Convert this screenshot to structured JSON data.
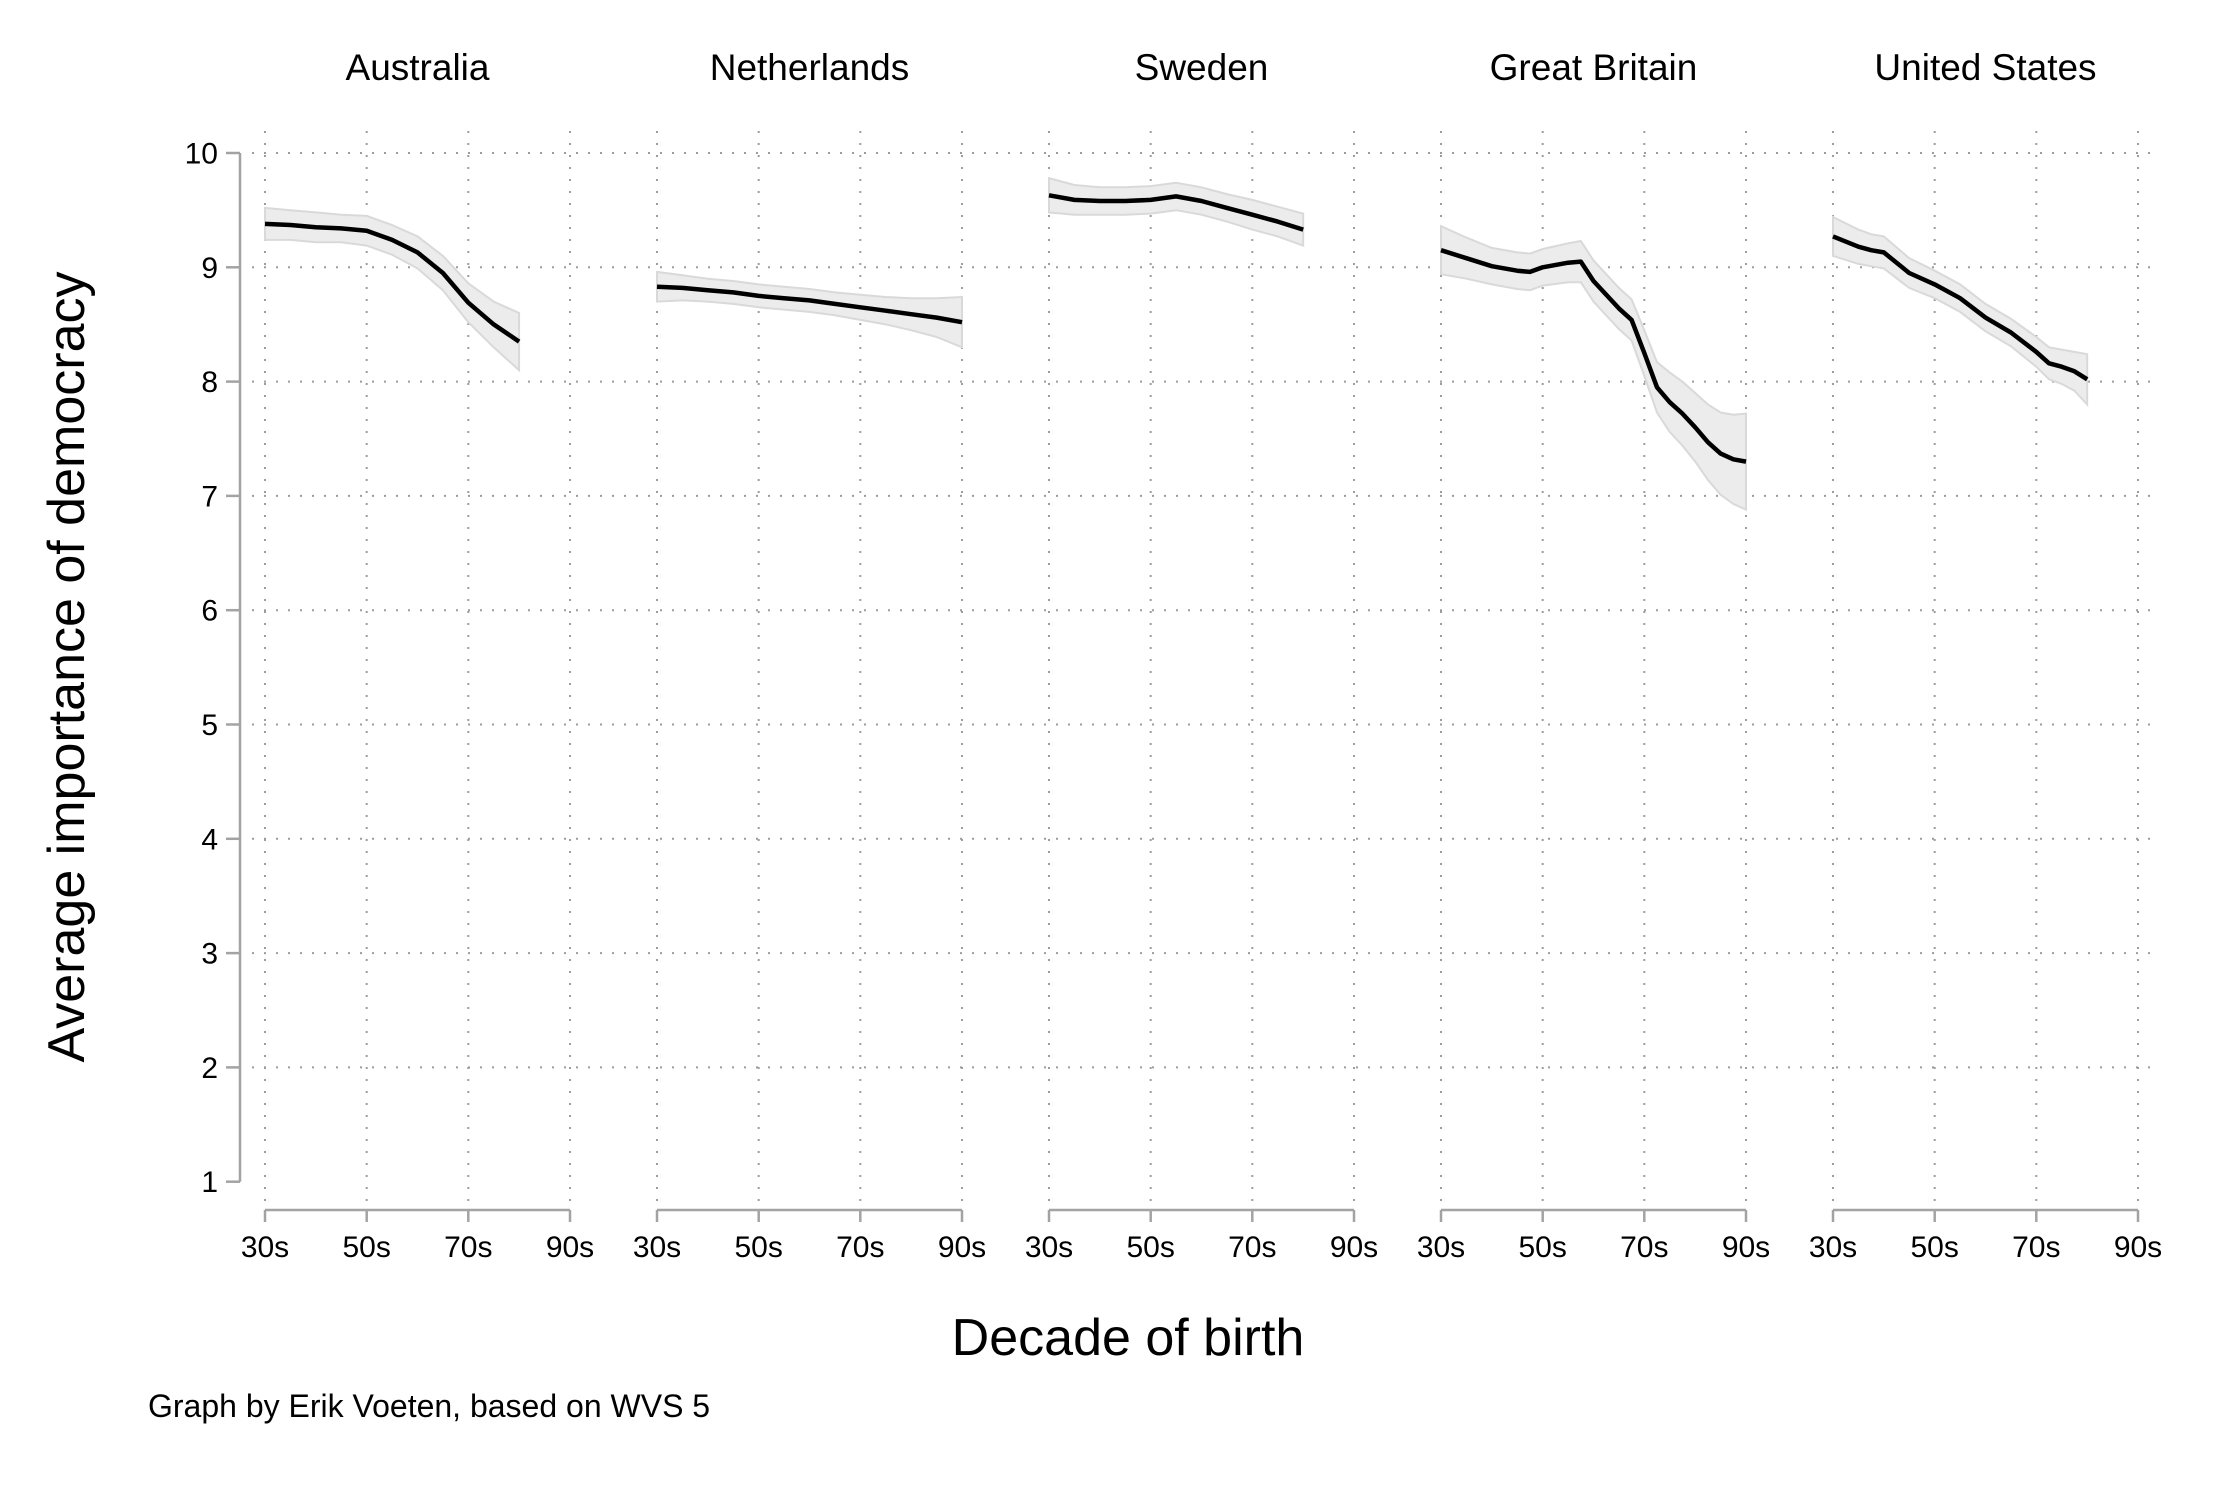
{
  "chart_data": {
    "type": "line",
    "title": "",
    "ylabel": "Average importance of democracy",
    "xlabel": "Decade of birth",
    "caption": "Graph by Erik Voeten, based on WVS 5",
    "ylim": [
      1,
      10
    ],
    "y_ticks": [
      1,
      2,
      3,
      4,
      5,
      6,
      7,
      8,
      9,
      10
    ],
    "x_tick_values": [
      30,
      50,
      70,
      90
    ],
    "x_tick_labels": [
      "30s",
      "50s",
      "70s",
      "90s"
    ],
    "grid": "dotted horizontal gridlines at 2-10, dotted vertical gridlines at labeled decades",
    "legend": "none",
    "band_meaning": "shaded gray confidence interval around each line",
    "points_format": "[birth_year_within_1900s, avg_importance, ci_halfwidth]",
    "facets": [
      {
        "name": "Australia",
        "points": [
          [
            30,
            9.38,
            0.14
          ],
          [
            35,
            9.37,
            0.13
          ],
          [
            40,
            9.35,
            0.13
          ],
          [
            45,
            9.34,
            0.12
          ],
          [
            50,
            9.32,
            0.13
          ],
          [
            55,
            9.24,
            0.13
          ],
          [
            60,
            9.13,
            0.14
          ],
          [
            65,
            8.95,
            0.15
          ],
          [
            70,
            8.69,
            0.17
          ],
          [
            75,
            8.5,
            0.2
          ],
          [
            80,
            8.35,
            0.25
          ]
        ]
      },
      {
        "name": "Netherlands",
        "points": [
          [
            30,
            8.83,
            0.13
          ],
          [
            35,
            8.82,
            0.11
          ],
          [
            40,
            8.8,
            0.1
          ],
          [
            45,
            8.78,
            0.1
          ],
          [
            50,
            8.75,
            0.1
          ],
          [
            55,
            8.73,
            0.1
          ],
          [
            60,
            8.71,
            0.1
          ],
          [
            65,
            8.68,
            0.1
          ],
          [
            70,
            8.65,
            0.11
          ],
          [
            75,
            8.62,
            0.12
          ],
          [
            80,
            8.59,
            0.14
          ],
          [
            85,
            8.56,
            0.17
          ],
          [
            90,
            8.52,
            0.22
          ]
        ]
      },
      {
        "name": "Sweden",
        "points": [
          [
            30,
            9.63,
            0.15
          ],
          [
            35,
            9.59,
            0.13
          ],
          [
            40,
            9.58,
            0.12
          ],
          [
            45,
            9.58,
            0.12
          ],
          [
            50,
            9.59,
            0.12
          ],
          [
            55,
            9.62,
            0.12
          ],
          [
            60,
            9.58,
            0.12
          ],
          [
            65,
            9.52,
            0.12
          ],
          [
            70,
            9.46,
            0.13
          ],
          [
            75,
            9.4,
            0.13
          ],
          [
            80,
            9.33,
            0.14
          ]
        ]
      },
      {
        "name": "Great Britain",
        "points": [
          [
            30,
            9.15,
            0.21
          ],
          [
            35,
            9.08,
            0.18
          ],
          [
            40,
            9.01,
            0.16
          ],
          [
            45,
            8.97,
            0.16
          ],
          [
            47.5,
            8.96,
            0.16
          ],
          [
            50,
            9.0,
            0.16
          ],
          [
            55,
            9.04,
            0.17
          ],
          [
            57.5,
            9.05,
            0.18
          ],
          [
            60,
            8.88,
            0.18
          ],
          [
            65,
            8.64,
            0.18
          ],
          [
            67.5,
            8.54,
            0.18
          ],
          [
            70,
            8.25,
            0.2
          ],
          [
            72.5,
            7.95,
            0.22
          ],
          [
            75,
            7.82,
            0.26
          ],
          [
            77.5,
            7.72,
            0.28
          ],
          [
            80,
            7.6,
            0.3
          ],
          [
            82.5,
            7.47,
            0.33
          ],
          [
            85,
            7.37,
            0.36
          ],
          [
            87.5,
            7.32,
            0.39
          ],
          [
            90,
            7.3,
            0.42
          ]
        ]
      },
      {
        "name": "United States",
        "points": [
          [
            30,
            9.27,
            0.17
          ],
          [
            35,
            9.18,
            0.15
          ],
          [
            37.5,
            9.15,
            0.14
          ],
          [
            40,
            9.13,
            0.14
          ],
          [
            45,
            8.95,
            0.13
          ],
          [
            50,
            8.85,
            0.12
          ],
          [
            55,
            8.73,
            0.12
          ],
          [
            60,
            8.56,
            0.12
          ],
          [
            65,
            8.43,
            0.12
          ],
          [
            70,
            8.26,
            0.13
          ],
          [
            72.5,
            8.16,
            0.14
          ],
          [
            75,
            8.13,
            0.15
          ],
          [
            77.5,
            8.09,
            0.17
          ],
          [
            80,
            8.02,
            0.22
          ]
        ]
      }
    ],
    "colors": {
      "line": "#000000",
      "band_fill": "#ececec",
      "band_edge": "#d9d9d9",
      "axis": "#a3a3a3",
      "grid_dot": "#9c9c9c",
      "text": "#000000",
      "background": "#ffffff"
    }
  }
}
